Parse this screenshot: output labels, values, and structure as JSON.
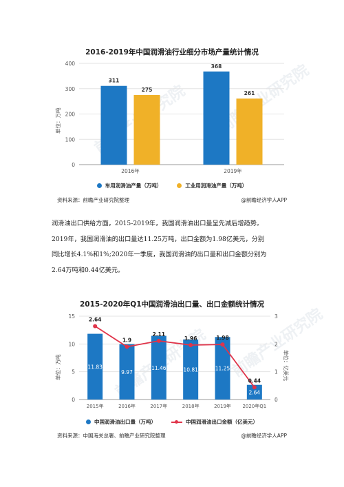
{
  "chart1": {
    "title": "2016-2019年中国润滑油行业细分市场产量统计情况",
    "ylabel": "单位：万吨",
    "legend": [
      {
        "label": "车用润滑油产量（万吨）",
        "color": "#1d78c4"
      },
      {
        "label": "工业用润滑油产量（万吨）",
        "color": "#f0b128"
      }
    ],
    "footer_left": "资料来源：前瞻产业研究院整理",
    "footer_right": "@前瞻经济学人APP",
    "watermark": "前瞻产业研究院"
  },
  "paragraph": {
    "line1": "润滑油出口供给方面，2015-2019年，我国润滑油出口量呈先减后增趋势。",
    "line2": "2019年，我国润滑油的出口量达11.25万吨，出口金额为1.98亿美元，分别",
    "line3": "同比增长4.1%和1%;2020年一季度，我国润滑油的出口量和出口金额分别为",
    "line4": "2.64万吨和0.44亿美元。"
  },
  "chart2": {
    "title": "2015-2020年Q1中国润滑油出口量、出口金额统计情况",
    "ylabel_left": "单位：万吨",
    "ylabel_right": "单位：亿美元",
    "legend": [
      {
        "label": "中国润滑油出口量（万吨）",
        "color": "#1d78c4"
      },
      {
        "label": "中国润滑油出口金额（亿美元）",
        "color": "#e0344a"
      }
    ],
    "footer_left": "资料来源：中国海关总署、前瞻产业研究院整理",
    "footer_right": "@前瞻经济学人APP",
    "watermark": "前瞻产业研究院"
  },
  "chart_data": [
    {
      "type": "bar",
      "title": "2016-2019年中国润滑油行业细分市场产量统计情况",
      "categories": [
        "2016年",
        "2019年"
      ],
      "series": [
        {
          "name": "车用润滑油产量（万吨）",
          "values": [
            311,
            368
          ],
          "color": "#1d78c4"
        },
        {
          "name": "工业用润滑油产量（万吨）",
          "values": [
            275,
            261
          ],
          "color": "#f0b128"
        }
      ],
      "ylabel": "单位：万吨",
      "ylim": [
        0,
        400
      ],
      "yticks": [
        0,
        100,
        200,
        300,
        400
      ],
      "grid": true,
      "legend": "bottom"
    },
    {
      "type": "bar",
      "title": "2015-2020年Q1中国润滑油出口量、出口金额统计情况",
      "categories": [
        "2015年",
        "2016年",
        "2017年",
        "2018年",
        "2019年",
        "2020年Q1"
      ],
      "series": [
        {
          "name": "中国润滑油出口量（万吨）",
          "values": [
            11.83,
            9.97,
            11.46,
            10.81,
            11.25,
            2.64
          ],
          "color": "#1d78c4",
          "axis": "left"
        },
        {
          "name": "中国润滑油出口金额（亿美元）",
          "values": [
            2.64,
            1.9,
            2.11,
            1.96,
            1.98,
            0.44
          ],
          "color": "#e0344a",
          "axis": "right",
          "kind": "line"
        }
      ],
      "ylabel": "单位：万吨",
      "ylabel_right": "单位：亿美元",
      "ylim": [
        0,
        15
      ],
      "ylim_right": [
        0,
        3
      ],
      "yticks": [
        0,
        5,
        10,
        15
      ],
      "yticks_right": [
        0,
        1,
        2,
        3
      ],
      "grid": true,
      "legend": "bottom"
    }
  ]
}
